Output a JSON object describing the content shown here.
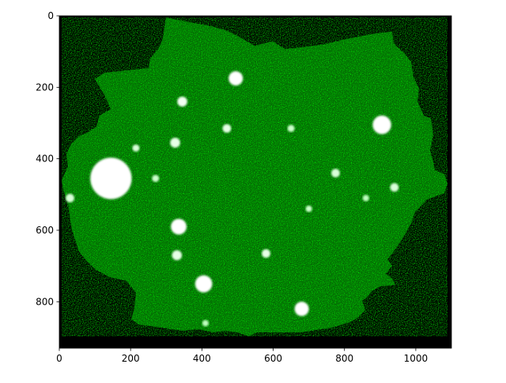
{
  "chart_data": {
    "type": "heatmap",
    "title": "",
    "xlabel": "",
    "ylabel": "",
    "xlim": [
      0,
      1100
    ],
    "ylim": [
      930,
      0
    ],
    "y_inverted": true,
    "x_ticks": [
      0,
      200,
      400,
      600,
      800,
      1000
    ],
    "y_ticks": [
      0,
      200,
      400,
      600,
      800
    ],
    "x_tick_labels": [
      "0",
      "200",
      "400",
      "600",
      "800",
      "1000"
    ],
    "y_tick_labels": [
      "0",
      "200",
      "400",
      "600",
      "800"
    ],
    "colormap": [
      "#000000",
      "#00ff00",
      "#ffffff"
    ],
    "background_color": "#000000",
    "grid": false,
    "bright_spots": [
      {
        "x": 145,
        "y": 455,
        "r": 58,
        "level": 1.0
      },
      {
        "x": 495,
        "y": 175,
        "r": 20,
        "level": 1.0
      },
      {
        "x": 905,
        "y": 305,
        "r": 26,
        "level": 1.0
      },
      {
        "x": 405,
        "y": 750,
        "r": 24,
        "level": 1.0
      },
      {
        "x": 335,
        "y": 590,
        "r": 22,
        "level": 1.0
      },
      {
        "x": 680,
        "y": 820,
        "r": 20,
        "level": 1.0
      },
      {
        "x": 345,
        "y": 240,
        "r": 14,
        "level": 0.95
      },
      {
        "x": 470,
        "y": 315,
        "r": 12,
        "level": 0.9
      },
      {
        "x": 325,
        "y": 355,
        "r": 14,
        "level": 0.9
      },
      {
        "x": 330,
        "y": 670,
        "r": 14,
        "level": 0.9
      },
      {
        "x": 580,
        "y": 665,
        "r": 12,
        "level": 0.9
      },
      {
        "x": 775,
        "y": 440,
        "r": 12,
        "level": 0.85
      },
      {
        "x": 940,
        "y": 480,
        "r": 12,
        "level": 0.85
      },
      {
        "x": 30,
        "y": 510,
        "r": 12,
        "level": 0.85
      },
      {
        "x": 215,
        "y": 370,
        "r": 10,
        "level": 0.85
      },
      {
        "x": 650,
        "y": 315,
        "r": 10,
        "level": 0.8
      },
      {
        "x": 270,
        "y": 455,
        "r": 10,
        "level": 0.8
      },
      {
        "x": 700,
        "y": 540,
        "r": 9,
        "level": 0.8
      },
      {
        "x": 410,
        "y": 860,
        "r": 9,
        "level": 0.75
      },
      {
        "x": 860,
        "y": 510,
        "r": 9,
        "level": 0.75
      }
    ]
  }
}
